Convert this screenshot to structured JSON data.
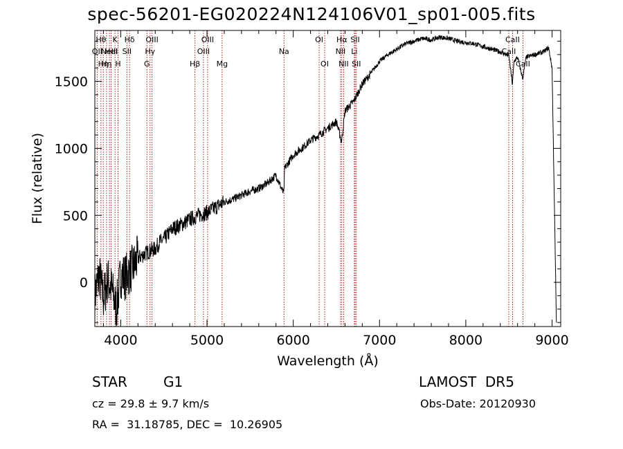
{
  "chart_data": {
    "type": "line",
    "title": "spec-56201-EG020224N124106V01_sp01-005.fits",
    "xlabel": "Wavelength (Å)",
    "ylabel": "Flux (relative)",
    "xlim": [
      3700,
      9100
    ],
    "ylim": [
      -330,
      1880
    ],
    "xticks": [
      4000,
      5000,
      6000,
      7000,
      8000,
      9000
    ],
    "yticks": [
      0,
      500,
      1000,
      1500
    ],
    "grid": false,
    "line_color": "#000000",
    "marker_color": "#a00000",
    "series": [
      {
        "x": [
          3700,
          3750,
          3800,
          3850,
          3900,
          3950,
          4000,
          4050,
          4100,
          4150,
          4200,
          4250,
          4300,
          4350,
          4400,
          4450,
          4500,
          4600,
          4700,
          4800,
          4900,
          5000,
          5100,
          5200,
          5300,
          5400,
          5500,
          5600,
          5700,
          5800,
          5890,
          5900,
          6000,
          6100,
          6200,
          6300,
          6400,
          6500,
          6560,
          6600,
          6700,
          6800,
          6900,
          7000,
          7100,
          7200,
          7300,
          7400,
          7500,
          7600,
          7700,
          7800,
          7900,
          8000,
          8100,
          8200,
          8300,
          8400,
          8500,
          8540,
          8560,
          8600,
          8660,
          8700,
          8800,
          8900,
          8960,
          9000,
          9050
        ],
        "y": [
          -100,
          60,
          -120,
          20,
          -60,
          -200,
          60,
          40,
          80,
          120,
          180,
          200,
          220,
          240,
          250,
          300,
          320,
          400,
          430,
          470,
          500,
          520,
          560,
          600,
          620,
          650,
          680,
          700,
          740,
          800,
          660,
          850,
          950,
          1000,
          1060,
          1100,
          1150,
          1200,
          1050,
          1280,
          1350,
          1480,
          1560,
          1650,
          1700,
          1740,
          1780,
          1800,
          1820,
          1810,
          1830,
          1820,
          1800,
          1790,
          1780,
          1760,
          1740,
          1720,
          1690,
          1480,
          1650,
          1680,
          1520,
          1680,
          1700,
          1720,
          1750,
          1600,
          -300
        ]
      }
    ],
    "lines": [
      {
        "x": 3727,
        "label": "OII",
        "row": 1
      },
      {
        "x": 3771,
        "label": "Hθ",
        "row": 0
      },
      {
        "x": 3798,
        "label": "Hη",
        "row": 2
      },
      {
        "x": 3835,
        "label": "Hη",
        "row": 2
      },
      {
        "x": 3869,
        "label": "NeIII",
        "row": 1
      },
      {
        "x": 3889,
        "label": "HeI",
        "row": 1
      },
      {
        "x": 3934,
        "label": "K",
        "row": 0
      },
      {
        "x": 3969,
        "label": "H",
        "row": 2
      },
      {
        "x": 4072,
        "label": "SII",
        "row": 1
      },
      {
        "x": 4102,
        "label": "Hδ",
        "row": 0
      },
      {
        "x": 4304,
        "label": "G",
        "row": 2
      },
      {
        "x": 4340,
        "label": "Hγ",
        "row": 1
      },
      {
        "x": 4363,
        "label": "OIII",
        "row": 0
      },
      {
        "x": 4861,
        "label": "Hβ",
        "row": 2
      },
      {
        "x": 4959,
        "label": "OIII",
        "row": 1
      },
      {
        "x": 5007,
        "label": "OIII",
        "row": 0
      },
      {
        "x": 5175,
        "label": "Mg",
        "row": 2
      },
      {
        "x": 5893,
        "label": "Na",
        "row": 1
      },
      {
        "x": 6300,
        "label": "OI",
        "row": 0
      },
      {
        "x": 6364,
        "label": "OI",
        "row": 2
      },
      {
        "x": 6548,
        "label": "NII",
        "row": 1
      },
      {
        "x": 6563,
        "label": "Hα",
        "row": 0
      },
      {
        "x": 6584,
        "label": "NII",
        "row": 2
      },
      {
        "x": 6708,
        "label": "Li",
        "row": 1
      },
      {
        "x": 6717,
        "label": "SII",
        "row": 0
      },
      {
        "x": 6731,
        "label": "SII",
        "row": 2
      },
      {
        "x": 8498,
        "label": "CaII",
        "row": 1
      },
      {
        "x": 8542,
        "label": "CaII",
        "row": 0
      },
      {
        "x": 8662,
        "label": "CaII",
        "row": 2
      }
    ]
  },
  "info": {
    "object_class": "STAR",
    "subclass": "G1",
    "redshift": "cz = 29.8 ± 9.7 km/s",
    "coords": "RA =  31.18785, DEC =  10.26905",
    "survey": "LAMOST  DR5",
    "obs_date": "Obs-Date: 20120930"
  }
}
